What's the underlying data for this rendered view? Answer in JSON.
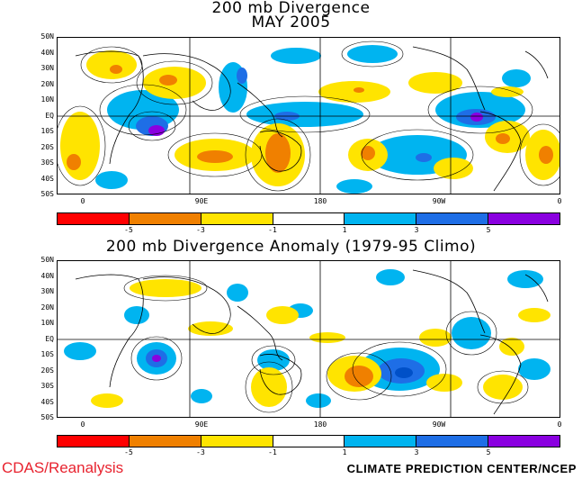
{
  "top_panel": {
    "title_line1": "200 mb Divergence",
    "title_line2": "MAY 2005"
  },
  "bottom_panel": {
    "title": "200 mb Divergence Anomaly (1979-95 Climo)"
  },
  "lat_labels": [
    "50N",
    "40N",
    "30N",
    "20N",
    "10N",
    "EQ",
    "10S",
    "20S",
    "30S",
    "40S",
    "50S"
  ],
  "lon_labels": [
    "0",
    "90E",
    "180",
    "90W",
    "0"
  ],
  "colorbar": {
    "tick_labels": [
      "-5",
      "-3",
      "-1",
      "1",
      "3",
      "5"
    ],
    "colors": [
      "#ff0000",
      "#f08000",
      "#ffe400",
      "#ffffff",
      "#00b4f0",
      "#1e6ee6",
      "#8a00e0"
    ]
  },
  "footer": {
    "left": "CDAS/Reanalysis",
    "right": "CLIMATE PREDICTION CENTER/NCEP"
  },
  "colors": {
    "positive_light": "#00b4f0",
    "positive_mid": "#1e6ee6",
    "positive_strong": "#8a00e0",
    "negative_light": "#ffe400",
    "negative_mid": "#f08000",
    "negative_strong": "#ff0000",
    "credit_red": "#e8232f"
  }
}
